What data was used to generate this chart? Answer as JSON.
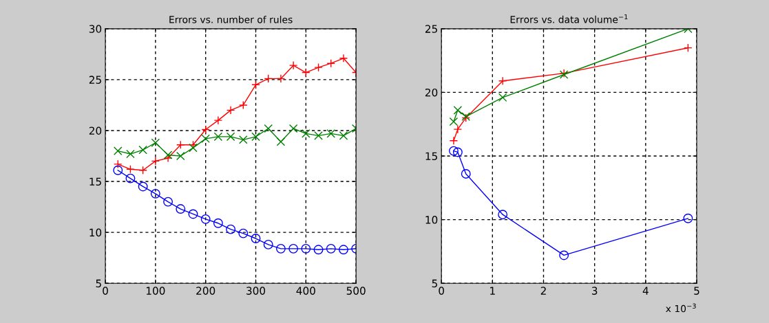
{
  "chart_data": [
    {
      "type": "line",
      "title": "Errors vs. number of rules",
      "x": [
        25,
        50,
        75,
        100,
        125,
        150,
        175,
        200,
        225,
        250,
        275,
        300,
        325,
        350,
        375,
        400,
        425,
        450,
        475,
        500
      ],
      "series": [
        {
          "color": "#ff0000",
          "marker": "plus",
          "values": [
            16.7,
            16.2,
            16.1,
            17.0,
            17.3,
            18.6,
            18.6,
            20.1,
            21.0,
            22.0,
            22.5,
            24.5,
            25.1,
            25.1,
            26.4,
            25.7,
            26.2,
            26.6,
            27.1,
            25.7
          ]
        },
        {
          "color": "#008000",
          "marker": "cross",
          "values": [
            18.0,
            17.7,
            18.1,
            18.8,
            17.6,
            17.5,
            18.3,
            19.2,
            19.4,
            19.4,
            19.1,
            19.4,
            20.2,
            18.9,
            20.2,
            19.7,
            19.5,
            19.7,
            19.5,
            20.2
          ]
        },
        {
          "color": "#0000ff",
          "marker": "circle",
          "values": [
            16.1,
            15.3,
            14.5,
            13.8,
            13.0,
            12.3,
            11.8,
            11.3,
            10.9,
            10.3,
            9.9,
            9.4,
            8.8,
            8.4,
            8.4,
            8.4,
            8.3,
            8.4,
            8.3,
            8.4
          ]
        }
      ],
      "xlim": [
        0,
        500
      ],
      "xticks": [
        0,
        100,
        200,
        300,
        400,
        500
      ],
      "ylim": [
        5,
        30
      ],
      "yticks": [
        5,
        10,
        15,
        20,
        25,
        30
      ],
      "grid": true,
      "legend": false
    },
    {
      "type": "line",
      "title": "Errors vs. data volume$^{−1}$",
      "x": [
        0.24,
        0.32,
        0.48,
        1.2,
        2.4,
        4.83
      ],
      "series": [
        {
          "color": "#ff0000",
          "marker": "plus",
          "values": [
            16.2,
            17.1,
            18.0,
            20.9,
            21.5,
            23.5
          ]
        },
        {
          "color": "#008000",
          "marker": "cross",
          "values": [
            17.7,
            18.6,
            18.1,
            19.6,
            21.4,
            25.0
          ]
        },
        {
          "color": "#0000ff",
          "marker": "circle",
          "values": [
            15.4,
            15.3,
            13.6,
            10.4,
            7.2,
            10.1
          ]
        }
      ],
      "xlim": [
        0,
        5
      ],
      "xticks": [
        0,
        1,
        2,
        3,
        4,
        5
      ],
      "ylim": [
        5,
        25
      ],
      "yticks": [
        5,
        10,
        15,
        20,
        25
      ],
      "grid": true,
      "legend": false,
      "annotations": [
        "x 10$^{−3}$"
      ]
    }
  ]
}
